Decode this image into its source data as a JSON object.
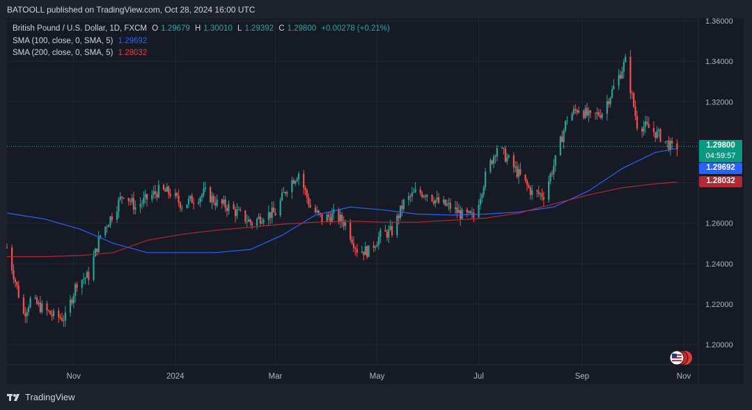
{
  "publisher": "BATOOLL published on TradingView.com, Oct 28, 2024 16:00 UTC",
  "legend": {
    "symbol": "British Pound / U.S. Dollar, 1D, FXCM",
    "o_label": "O",
    "o_value": "1.29679",
    "h_label": "H",
    "h_value": "1.30010",
    "l_label": "L",
    "l_value": "1.29392",
    "c_label": "C",
    "c_value": "1.29800",
    "change": "+0.00278 (+0.21%)",
    "sma100_label": "SMA (100, close, 0, SMA, 5)",
    "sma100_value": "1.29692",
    "sma200_label": "SMA (200, close, 0, SMA, 5)",
    "sma200_value": "1.28032"
  },
  "price_tag": {
    "price": "1.29800",
    "countdown": "04:59:57"
  },
  "sma100_tag": "1.29692",
  "sma200_tag": "1.28032",
  "logo_text": "TradingView",
  "colors": {
    "up": "#26a69a",
    "down": "#ef5350",
    "sma100": "#2962ff",
    "sma200": "#b22833",
    "grid": "#232734",
    "axis_text": "#b2b5be"
  },
  "icons": {
    "logo": "tradingview-logo-icon",
    "flag": "us-uk-flag-icon"
  },
  "chart_data": {
    "type": "candlestick",
    "title": "British Pound / U.S. Dollar, 1D, FXCM",
    "ylim": [
      1.19,
      1.36
    ],
    "y_ticks": [
      "1.20000",
      "1.22000",
      "1.24000",
      "1.26000",
      "1.28000",
      "1.30000",
      "1.32000",
      "1.34000",
      "1.36000"
    ],
    "x_ticks": [
      {
        "label": "Nov",
        "date": "2023-11-01"
      },
      {
        "label": "2024",
        "date": "2024-01-01"
      },
      {
        "label": "Mar",
        "date": "2024-03-01"
      },
      {
        "label": "May",
        "date": "2024-05-01"
      },
      {
        "label": "Jul",
        "date": "2024-07-01"
      },
      {
        "label": "Sep",
        "date": "2024-09-01"
      },
      {
        "label": "Nov",
        "date": "2024-11-01"
      }
    ],
    "grid": true,
    "last_price": 1.298,
    "close_series": {
      "x": [
        "2023-09-22",
        "2023-10-02",
        "2023-10-06",
        "2023-10-13",
        "2023-10-20",
        "2023-10-27",
        "2023-11-03",
        "2023-11-10",
        "2023-11-17",
        "2023-11-24",
        "2023-12-01",
        "2023-12-08",
        "2023-12-15",
        "2023-12-22",
        "2023-12-29",
        "2024-01-05",
        "2024-01-12",
        "2024-01-19",
        "2024-01-26",
        "2024-02-02",
        "2024-02-09",
        "2024-02-16",
        "2024-02-23",
        "2024-03-01",
        "2024-03-08",
        "2024-03-15",
        "2024-03-22",
        "2024-03-29",
        "2024-04-05",
        "2024-04-12",
        "2024-04-19",
        "2024-04-26",
        "2024-05-03",
        "2024-05-10",
        "2024-05-17",
        "2024-05-24",
        "2024-05-31",
        "2024-06-07",
        "2024-06-14",
        "2024-06-21",
        "2024-06-28",
        "2024-07-05",
        "2024-07-12",
        "2024-07-19",
        "2024-07-26",
        "2024-08-02",
        "2024-08-09",
        "2024-08-16",
        "2024-08-23",
        "2024-08-30",
        "2024-09-06",
        "2024-09-13",
        "2024-09-20",
        "2024-09-27",
        "2024-10-04",
        "2024-10-11",
        "2024-10-18",
        "2024-10-25",
        "2024-10-28"
      ],
      "values": [
        1.248,
        1.215,
        1.222,
        1.218,
        1.214,
        1.213,
        1.231,
        1.234,
        1.254,
        1.264,
        1.275,
        1.268,
        1.272,
        1.276,
        1.275,
        1.269,
        1.272,
        1.275,
        1.27,
        1.268,
        1.264,
        1.26,
        1.264,
        1.265,
        1.278,
        1.285,
        1.268,
        1.262,
        1.264,
        1.26,
        1.247,
        1.246,
        1.254,
        1.256,
        1.27,
        1.275,
        1.275,
        1.27,
        1.268,
        1.264,
        1.263,
        1.283,
        1.298,
        1.291,
        1.283,
        1.275,
        1.274,
        1.291,
        1.312,
        1.317,
        1.312,
        1.315,
        1.327,
        1.34,
        1.309,
        1.307,
        1.303,
        1.297,
        1.298
      ]
    },
    "series": [
      {
        "name": "SMA (100, close, 0, SMA, 5)",
        "x": [
          "2023-09-22",
          "2023-10-15",
          "2023-11-05",
          "2023-11-25",
          "2023-12-15",
          "2024-01-05",
          "2024-01-25",
          "2024-02-15",
          "2024-03-05",
          "2024-03-25",
          "2024-04-15",
          "2024-05-05",
          "2024-05-25",
          "2024-06-15",
          "2024-07-05",
          "2024-07-25",
          "2024-08-15",
          "2024-09-05",
          "2024-09-25",
          "2024-10-15",
          "2024-10-28"
        ],
        "values": [
          1.265,
          1.262,
          1.257,
          1.25,
          1.2455,
          1.2455,
          1.2455,
          1.247,
          1.254,
          1.264,
          1.268,
          1.2665,
          1.2645,
          1.264,
          1.2645,
          1.2655,
          1.268,
          1.276,
          1.287,
          1.295,
          1.29692
        ],
        "color": "#2962ff"
      },
      {
        "name": "SMA (200, close, 0, SMA, 5)",
        "x": [
          "2023-09-22",
          "2023-10-15",
          "2023-11-05",
          "2023-11-25",
          "2023-12-15",
          "2024-01-05",
          "2024-01-25",
          "2024-02-15",
          "2024-03-05",
          "2024-03-25",
          "2024-04-15",
          "2024-05-05",
          "2024-05-25",
          "2024-06-15",
          "2024-07-05",
          "2024-07-25",
          "2024-08-15",
          "2024-09-05",
          "2024-09-25",
          "2024-10-15",
          "2024-10-28"
        ],
        "values": [
          1.2435,
          1.2435,
          1.244,
          1.2455,
          1.2515,
          1.2545,
          1.2565,
          1.258,
          1.2595,
          1.2605,
          1.261,
          1.2605,
          1.2605,
          1.2615,
          1.2625,
          1.265,
          1.2695,
          1.274,
          1.2775,
          1.2795,
          1.28032
        ],
        "color": "#b22833"
      }
    ]
  }
}
